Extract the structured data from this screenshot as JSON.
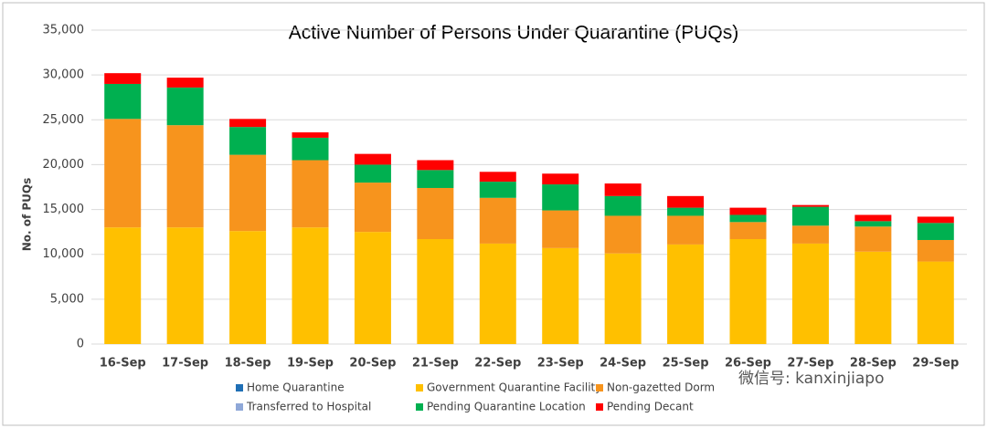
{
  "chart_data": {
    "type": "stacked_bar",
    "title": "Active Number of Persons Under Quarantine (PUQs)",
    "y_label": "No. of PUQs",
    "categories": [
      "16-Sep",
      "17-Sep",
      "18-Sep",
      "19-Sep",
      "20-Sep",
      "21-Sep",
      "22-Sep",
      "23-Sep",
      "24-Sep",
      "25-Sep",
      "26-Sep",
      "27-Sep",
      "28-Sep",
      "29-Sep"
    ],
    "series": [
      {
        "name": "Home  Quarantine",
        "color": "#1f6fb5",
        "values": [
          0,
          0,
          0,
          0,
          0,
          0,
          0,
          0,
          0,
          0,
          0,
          0,
          0,
          0
        ]
      },
      {
        "name": "Government Quarantine Facility",
        "color": "#ffc000",
        "values": [
          13000,
          13000,
          12600,
          13000,
          12500,
          11700,
          11200,
          10700,
          10100,
          11100,
          11700,
          11200,
          10300,
          9200
        ]
      },
      {
        "name": "Non-gazetted Dorm",
        "color": "#f7941d",
        "values": [
          12100,
          11400,
          8500,
          7500,
          5500,
          5700,
          5100,
          4200,
          4200,
          3200,
          1900,
          2000,
          2800,
          2400
        ]
      },
      {
        "name": "Transferred to Hospital",
        "color": "#8fa8d8",
        "values": [
          0,
          0,
          0,
          0,
          0,
          0,
          0,
          0,
          0,
          0,
          0,
          0,
          0,
          0
        ]
      },
      {
        "name": "Pending Quarantine Location",
        "color": "#00b050",
        "values": [
          3900,
          4200,
          3100,
          2500,
          2000,
          2000,
          1800,
          2900,
          2200,
          900,
          800,
          2100,
          600,
          1900
        ]
      },
      {
        "name": "Pending Decant",
        "color": "#ff0000",
        "values": [
          1200,
          1100,
          900,
          600,
          1200,
          1100,
          1100,
          1200,
          1400,
          1300,
          800,
          200,
          700,
          700
        ]
      }
    ],
    "ylim": [
      0,
      35000
    ],
    "yticks": [
      0,
      {
        "value": 5000,
        "label": "5,000"
      },
      {
        "value": 10000,
        "label": "10,000"
      },
      {
        "value": 15000,
        "label": "15,000"
      },
      {
        "value": 20000,
        "label": "20,000"
      },
      {
        "value": 25000,
        "label": "25,000"
      },
      {
        "value": 30000,
        "label": "30,000"
      },
      {
        "value": 35000,
        "label": "35,000"
      }
    ],
    "grid": true,
    "watermark": "微信号: kanxinjiapo"
  }
}
